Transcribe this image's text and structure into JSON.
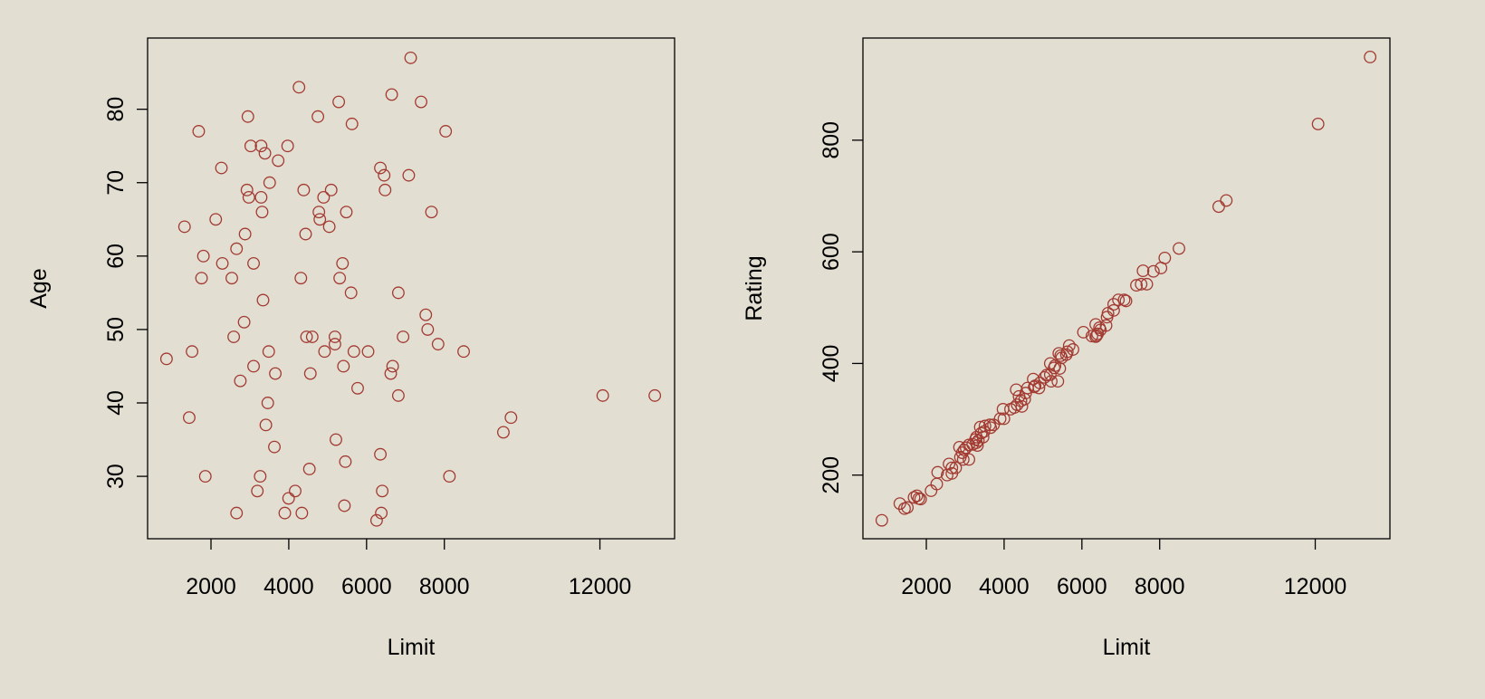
{
  "chart_data": [
    {
      "type": "scatter",
      "x_label": "Limit",
      "y_label": "Age",
      "color": "#a33a32",
      "x": [
        856,
        1319,
        1440,
        1513,
        1684,
        1757,
        1805,
        1854,
        2122,
        2268,
        2292,
        2535,
        2584,
        2657,
        2657,
        2754,
        2852,
        2876,
        2925,
        2949,
        2973,
        3022,
        3095,
        3095,
        3192,
        3265,
        3289,
        3289,
        3314,
        3338,
        3387,
        3411,
        3460,
        3484,
        3508,
        3630,
        3654,
        3727,
        3898,
        3971,
        3995,
        4165,
        4263,
        4311,
        4336,
        4384,
        4433,
        4457,
        4530,
        4555,
        4603,
        4749,
        4774,
        4798,
        4895,
        4920,
        5041,
        5090,
        5187,
        5187,
        5212,
        5285,
        5309,
        5382,
        5406,
        5431,
        5455,
        5479,
        5601,
        5625,
        5674,
        5771,
        6039,
        6258,
        6355,
        6355,
        6379,
        6403,
        6452,
        6476,
        6622,
        6647,
        6671,
        6817,
        6817,
        6939,
        7085,
        7134,
        7402,
        7523,
        7572,
        7669,
        7839,
        8034,
        8131,
        8496,
        9518,
        9713,
        12073,
        13411
      ],
      "y": [
        46,
        64,
        38,
        47,
        77,
        57,
        60,
        30,
        65,
        72,
        59,
        57,
        49,
        61,
        25,
        43,
        51,
        63,
        69,
        79,
        68,
        75,
        59,
        45,
        28,
        30,
        75,
        68,
        66,
        54,
        74,
        37,
        40,
        47,
        70,
        34,
        44,
        73,
        25,
        75,
        27,
        28,
        83,
        57,
        25,
        69,
        63,
        49,
        31,
        44,
        49,
        79,
        66,
        65,
        68,
        47,
        64,
        69,
        49,
        48,
        35,
        81,
        57,
        59,
        45,
        26,
        32,
        66,
        55,
        78,
        47,
        42,
        47,
        24,
        33,
        72,
        25,
        28,
        71,
        69,
        44,
        82,
        45,
        41,
        55,
        49,
        71,
        87,
        81,
        52,
        50,
        66,
        48,
        77,
        30,
        47,
        36,
        38,
        41,
        41
      ],
      "xlim": [
        370,
        13920
      ],
      "ylim": [
        21.5,
        89.7
      ],
      "xticks": [
        2000,
        4000,
        6000,
        8000,
        12000
      ],
      "yticks": [
        30,
        40,
        50,
        60,
        70,
        80
      ]
    },
    {
      "type": "scatter",
      "x_label": "Limit",
      "y_label": "Rating",
      "color": "#a33a32",
      "x": [
        856,
        1319,
        1440,
        1513,
        1684,
        1757,
        1805,
        1854,
        2122,
        2268,
        2292,
        2535,
        2584,
        2657,
        2657,
        2754,
        2852,
        2876,
        2925,
        2949,
        2973,
        3022,
        3095,
        3095,
        3192,
        3265,
        3289,
        3289,
        3314,
        3338,
        3387,
        3411,
        3460,
        3484,
        3508,
        3630,
        3654,
        3727,
        3898,
        3971,
        3995,
        4165,
        4263,
        4311,
        4336,
        4384,
        4433,
        4457,
        4530,
        4555,
        4603,
        4749,
        4774,
        4798,
        4895,
        4920,
        5041,
        5090,
        5187,
        5187,
        5212,
        5285,
        5309,
        5382,
        5406,
        5431,
        5455,
        5479,
        5601,
        5625,
        5674,
        5771,
        6039,
        6258,
        6355,
        6355,
        6379,
        6403,
        6452,
        6476,
        6622,
        6647,
        6671,
        6817,
        6817,
        6939,
        7085,
        7134,
        7402,
        7523,
        7572,
        7669,
        7839,
        8034,
        8131,
        8496,
        9518,
        9713,
        12073,
        13411
      ],
      "y": [
        119,
        149,
        140,
        142,
        160,
        163,
        158,
        157,
        172,
        184,
        205,
        200,
        220,
        213,
        203,
        213,
        250,
        232,
        240,
        228,
        245,
        249,
        254,
        228,
        255,
        264,
        268,
        258,
        253,
        262,
        286,
        275,
        268,
        278,
        288,
        290,
        285,
        290,
        301,
        318,
        301,
        318,
        321,
        353,
        326,
        341,
        333,
        323,
        336,
        347,
        356,
        372,
        358,
        360,
        356,
        365,
        375,
        379,
        380,
        400,
        368,
        392,
        396,
        368,
        418,
        391,
        414,
        410,
        416,
        421,
        432,
        425,
        456,
        449,
        448,
        470,
        450,
        453,
        464,
        460,
        468,
        483,
        490,
        506,
        495,
        514,
        514,
        512,
        540,
        542,
        566,
        542,
        565,
        571,
        589,
        606,
        681,
        692,
        829,
        949
      ],
      "xlim": [
        370,
        13920
      ],
      "ylim": [
        86,
        983
      ],
      "xticks": [
        2000,
        4000,
        6000,
        8000,
        12000
      ],
      "yticks": [
        200,
        400,
        600,
        800
      ]
    }
  ]
}
